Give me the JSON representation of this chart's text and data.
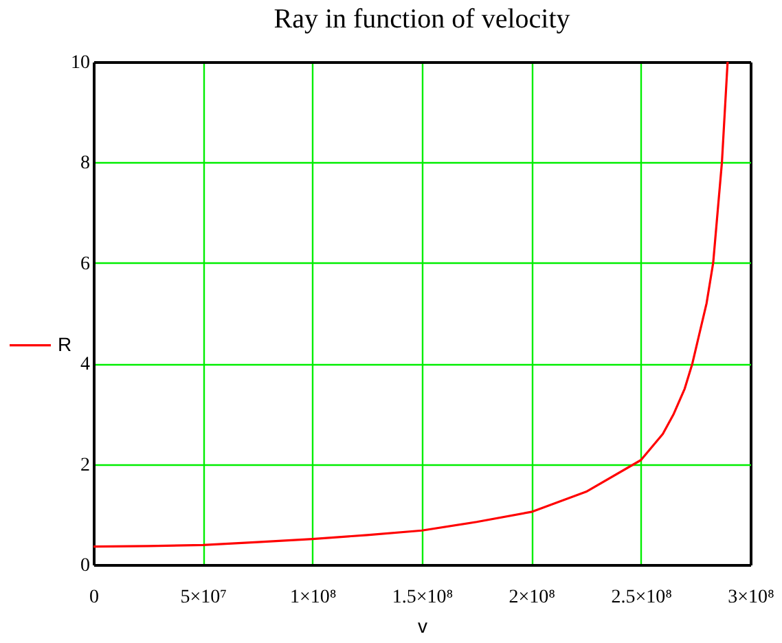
{
  "chart_data": {
    "type": "line",
    "title": "Ray in function of velocity",
    "xlabel": "v",
    "x": [
      0,
      25000000,
      50000000,
      75000000,
      100000000,
      125000000,
      150000000,
      175000000,
      200000000,
      225000000,
      250000000,
      260000000,
      265000000,
      270000000,
      273500000,
      280000000,
      283000000,
      285000000,
      287000000,
      289600000
    ],
    "series": [
      {
        "name": "R",
        "color": "#ff0000",
        "values": [
          0.36,
          0.37,
          0.39,
          0.45,
          0.51,
          0.59,
          0.68,
          0.85,
          1.05,
          1.45,
          2.08,
          2.6,
          3.0,
          3.5,
          4.0,
          5.2,
          6.0,
          7.0,
          8.0,
          10.0
        ]
      }
    ],
    "xlim": [
      0,
      300000000
    ],
    "ylim": [
      0,
      10
    ],
    "xticks": [
      0,
      {
        "value": 50000000,
        "label": "5×10⁷"
      },
      {
        "value": 100000000,
        "label": "1×10⁸"
      },
      {
        "value": 150000000,
        "label": "1.5×10⁸"
      },
      {
        "value": 200000000,
        "label": "2×10⁸"
      },
      {
        "value": 250000000,
        "label": "2.5×10⁸"
      },
      {
        "value": 300000000,
        "label": "3×10⁸"
      }
    ],
    "yticks": [
      0,
      2,
      4,
      6,
      8,
      10
    ],
    "grid": true,
    "legend": "left"
  }
}
